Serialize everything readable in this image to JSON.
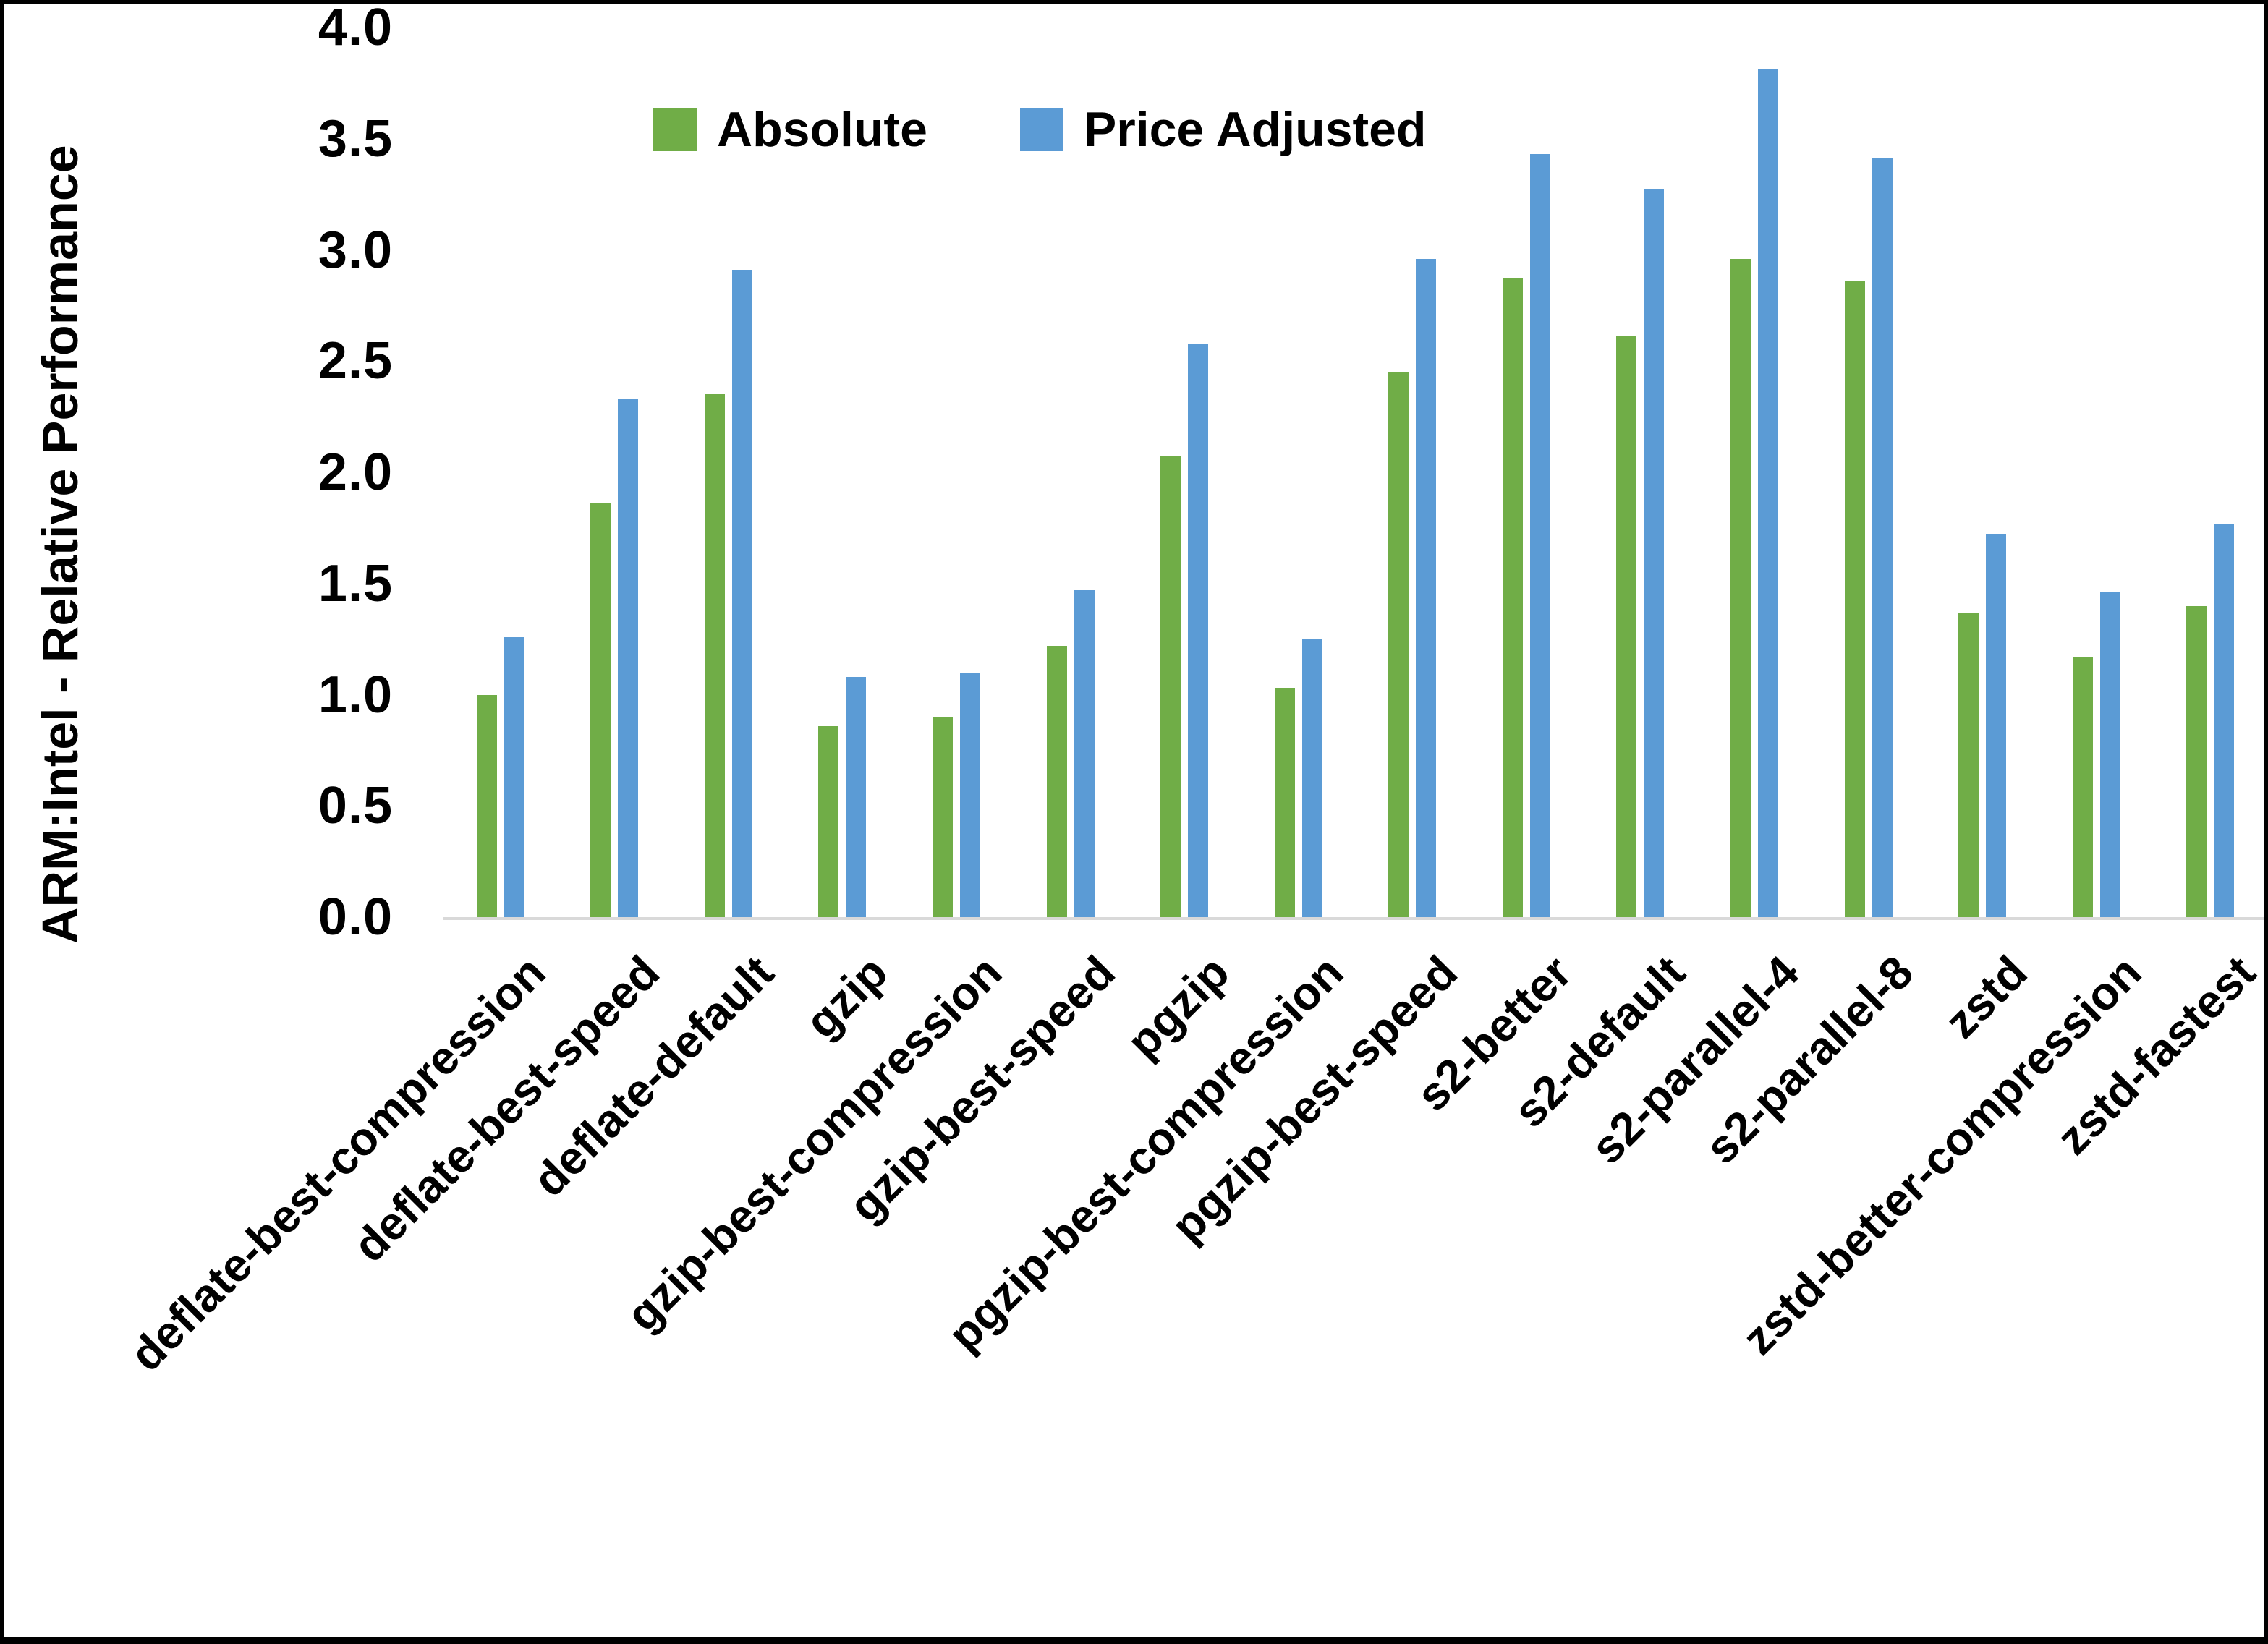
{
  "chart_data": {
    "type": "bar",
    "title": "",
    "xlabel": "",
    "ylabel": "ARM:Intel - Relative Performance",
    "ylim": [
      0.0,
      4.0
    ],
    "ytick_step": 0.5,
    "ytick_labels": [
      "0.0",
      "0.5",
      "1.0",
      "1.5",
      "2.0",
      "2.5",
      "3.0",
      "3.5",
      "4.0"
    ],
    "grid": false,
    "legend_position": "top-center",
    "axis_line_color": "#D9D9D9",
    "categories": [
      "deflate-best-compression",
      "deflate-best-speed",
      "deflate-default",
      "gzip",
      "gzip-best-compression",
      "gzip-best-speed",
      "pgzip",
      "pgzip-best-compression",
      "pgzip-best-speed",
      "s2-better",
      "s2-default",
      "s2-parallel-4",
      "s2-parallel-8",
      "zstd",
      "zstd-better-compression",
      "zstd-fastest"
    ],
    "series": [
      {
        "name": "Absolute",
        "color": "#70AD47",
        "values": [
          1.0,
          1.86,
          2.35,
          0.86,
          0.9,
          1.22,
          2.07,
          1.03,
          2.45,
          2.87,
          2.61,
          2.96,
          2.86,
          1.37,
          1.17,
          1.4
        ]
      },
      {
        "name": "Price Adjusted",
        "color": "#5B9BD5",
        "values": [
          1.26,
          2.33,
          2.91,
          1.08,
          1.1,
          1.47,
          2.58,
          1.25,
          2.96,
          3.43,
          3.27,
          3.81,
          3.41,
          1.72,
          1.46,
          1.77
        ]
      }
    ]
  }
}
